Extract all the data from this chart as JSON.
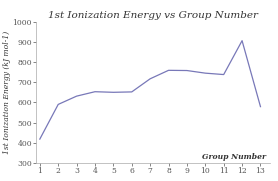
{
  "title": "1st Ionization Energy vs Group Number",
  "xlabel": "Group Number",
  "ylabel": "1st Ionization Energy (kJ mol-1)",
  "x": [
    1,
    2,
    3,
    4,
    5,
    6,
    7,
    8,
    9,
    10,
    11,
    12,
    13
  ],
  "y": [
    418,
    590,
    631,
    653,
    650,
    652,
    717,
    759,
    758,
    745,
    738,
    906,
    579
  ],
  "line_color": "#7878b8",
  "background_color": "#ffffff",
  "ylim": [
    300,
    1000
  ],
  "xlim": [
    0.8,
    13.5
  ],
  "yticks": [
    300,
    400,
    500,
    600,
    700,
    800,
    900,
    1000
  ],
  "xticks": [
    1,
    2,
    3,
    4,
    5,
    6,
    7,
    8,
    9,
    10,
    11,
    12,
    13
  ],
  "title_fontsize": 7.5,
  "label_fontsize": 5.5,
  "tick_fontsize": 5.5
}
